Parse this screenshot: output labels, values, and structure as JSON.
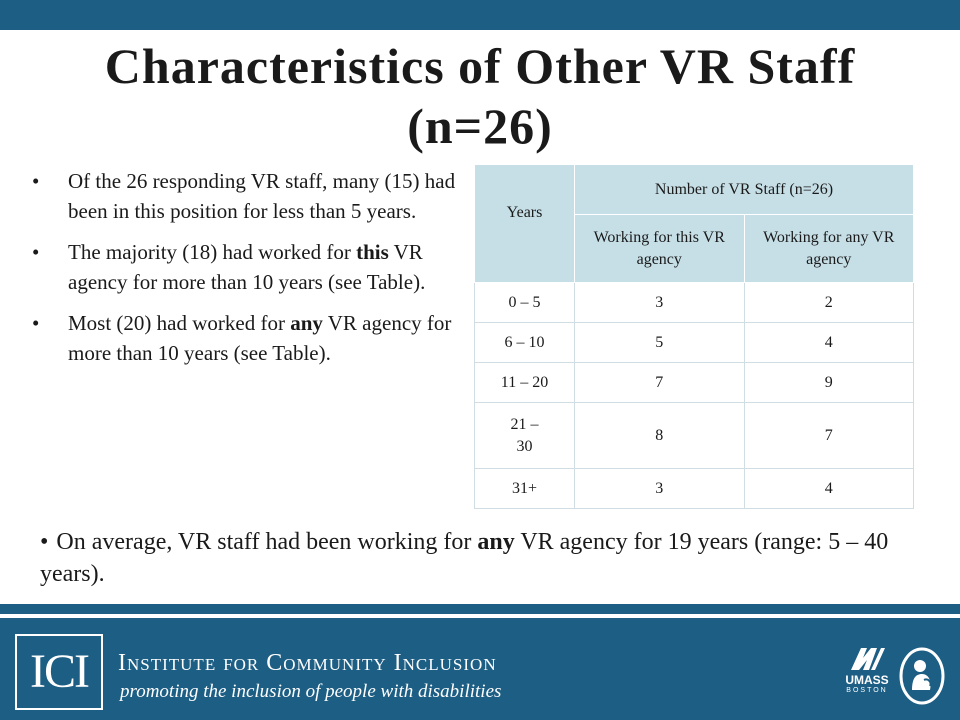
{
  "title": "Characteristics of Other VR Staff (n=26)",
  "bullets": [
    "Of the 26 responding VR staff, many (15) had been in this position for less than 5 years.",
    {
      "before": "The majority (18) had worked for ",
      "bold": "this",
      "after": " VR agency for more than 10 years (see Table)."
    },
    {
      "before": "Most (20) had worked for ",
      "bold": "any",
      "after": " VR agency for more than 10 years (see Table)."
    }
  ],
  "table": {
    "years_header": "Years",
    "group_header": "Number of VR Staff (n=26)",
    "col_this": "Working for this VR agency",
    "col_any": "Working for any VR agency",
    "rows": [
      {
        "years": "0 – 5",
        "this": "3",
        "any": "2"
      },
      {
        "years": "6 – 10",
        "this": "5",
        "any": "4"
      },
      {
        "years": "11 – 20",
        "this": "7",
        "any": "9"
      },
      {
        "years": "21 – 30",
        "this": "8",
        "any": "7"
      },
      {
        "years": "31+",
        "this": "3",
        "any": "4"
      }
    ]
  },
  "bottom_note": {
    "before": "On average, VR staff had been working for ",
    "bold": "any",
    "after": " VR agency for 19 years (range: 5 – 40 years)."
  },
  "footer": {
    "logo_text": "ICI",
    "org_name": "Institute for Community Inclusion",
    "tagline": "promoting the inclusion of people with disabilities",
    "umass_text": "UMASS",
    "umass_sub": "BOSTON"
  },
  "colors": {
    "brand_blue": "#1d5e84",
    "table_header_bg": "#c6dfe7"
  }
}
